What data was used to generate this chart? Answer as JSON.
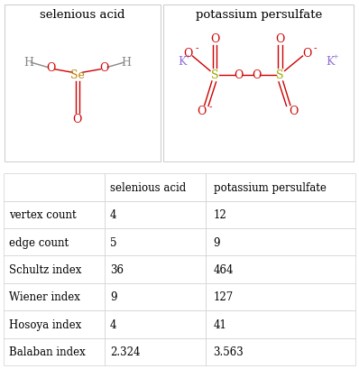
{
  "title_row": [
    "selenious acid",
    "potassium persulfate"
  ],
  "row_labels": [
    "vertex count",
    "edge count",
    "Schultz index",
    "Wiener index",
    "Hosoya index",
    "Balaban index"
  ],
  "col1_values": [
    "4",
    "5",
    "36",
    "9",
    "4",
    "2.324"
  ],
  "col2_values": [
    "12",
    "9",
    "464",
    "127",
    "41",
    "3.563"
  ],
  "border_color": "#d0d0d0",
  "text_color": "#000000",
  "background_color": "#ffffff",
  "O_color": "#cc0000",
  "H_color": "#888888",
  "Se_color": "#b8860b",
  "S_color": "#9aaa00",
  "K_color": "#9370db",
  "font_family": "DejaVu Serif"
}
